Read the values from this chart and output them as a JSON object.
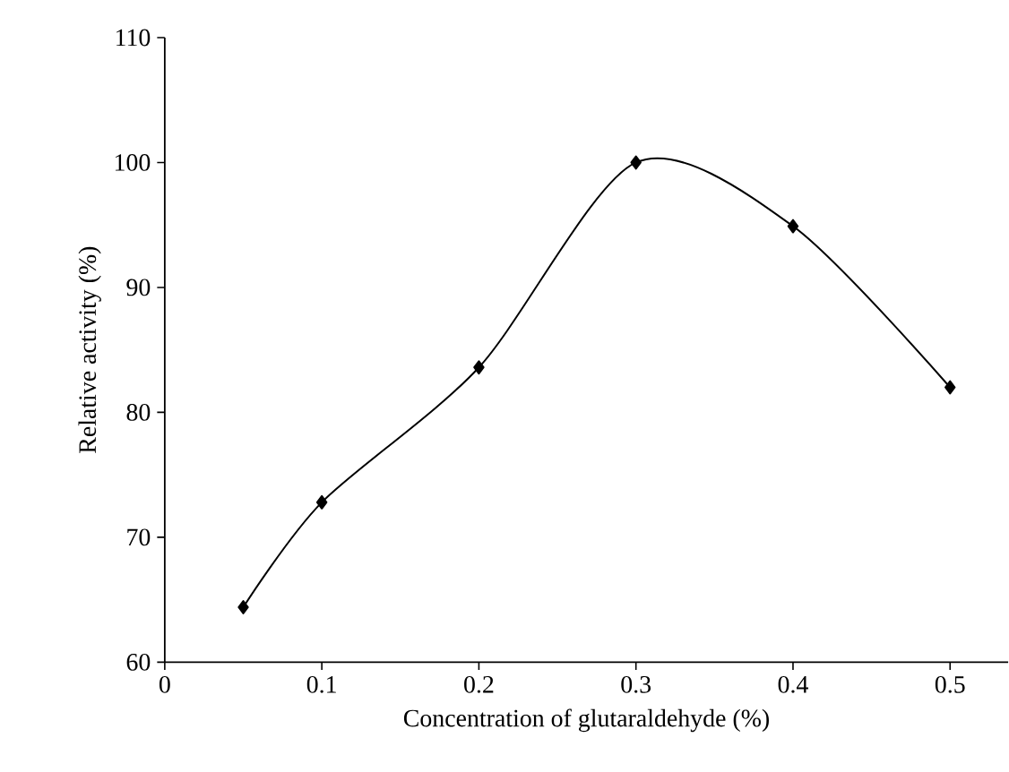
{
  "chart_data": {
    "type": "line",
    "xlabel": "Concentration of glutaraldehyde (%)",
    "ylabel": "Relative activity (%)",
    "x": [
      0.05,
      0.1,
      0.2,
      0.3,
      0.4,
      0.5
    ],
    "values": [
      64.4,
      72.8,
      83.6,
      100,
      94.9,
      82.0
    ],
    "color": "#000000",
    "marker": "diamond",
    "line_style": "solid",
    "xlim": [
      0,
      0.537
    ],
    "xticks": [
      0,
      0.1,
      0.2,
      0.3,
      0.4,
      0.5
    ],
    "ylim": [
      60,
      110
    ],
    "yticks": [
      60,
      70,
      80,
      90,
      100,
      110
    ]
  }
}
